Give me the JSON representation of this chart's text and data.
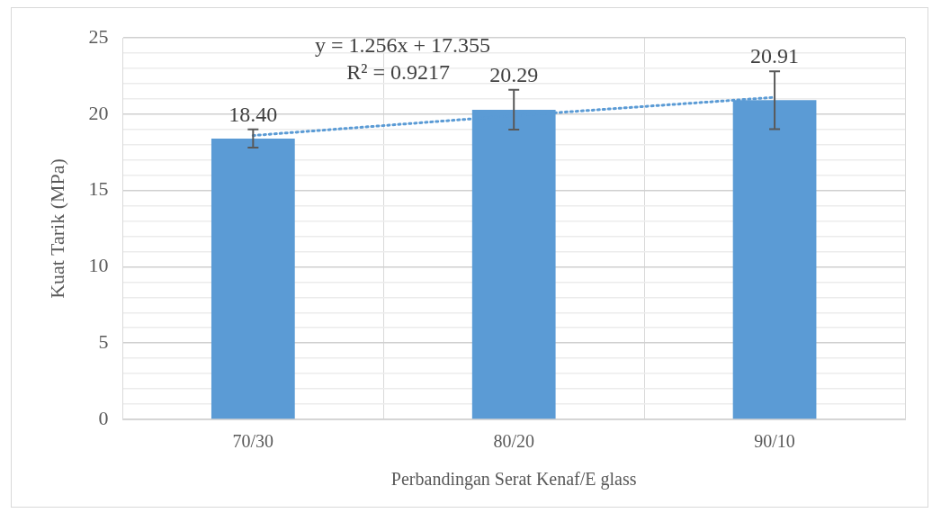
{
  "chart_data": {
    "type": "bar",
    "xlabel": "Perbandingan Serat Kenaf/E glass",
    "ylabel": "Kuat Tarik (MPa)",
    "categories": [
      "70/30",
      "80/20",
      "90/10"
    ],
    "series": [
      {
        "color": "#5b9bd5",
        "values": [
          18.4,
          20.29,
          20.91
        ],
        "errors": [
          0.6,
          1.3,
          1.9
        ],
        "value_labels": [
          "18.40",
          "20.29",
          "20.91"
        ]
      },
      {
        "type": "line",
        "color": "#5b9bd5",
        "line_style": "dotted",
        "marker": "none",
        "x": [
          "70/30",
          "80/20",
          "90/10"
        ],
        "values": [
          18.6,
          19.9,
          21.1
        ]
      }
    ],
    "ylim": [
      0,
      25
    ],
    "yticks": [
      0,
      {
        "value": 1,
        "label": null
      },
      {
        "value": 2,
        "label": null
      },
      {
        "value": 3,
        "label": null
      },
      {
        "value": 4,
        "label": null
      },
      5,
      {
        "value": 6,
        "label": null
      },
      {
        "value": 7,
        "label": null
      },
      {
        "value": 8,
        "label": null
      },
      {
        "value": 9,
        "label": null
      },
      10,
      {
        "value": 11,
        "label": null
      },
      {
        "value": 12,
        "label": null
      },
      {
        "value": 13,
        "label": null
      },
      {
        "value": 14,
        "label": null
      },
      15,
      {
        "value": 16,
        "label": null
      },
      {
        "value": 17,
        "label": null
      },
      {
        "value": 18,
        "label": null
      },
      {
        "value": 19,
        "label": null
      },
      20,
      {
        "value": 21,
        "label": null
      },
      {
        "value": 22,
        "label": null
      },
      {
        "value": 23,
        "label": null
      },
      {
        "value": 24,
        "label": null
      },
      25
    ],
    "grid": true,
    "annotations": [
      "y = 1.256x + 17.355",
      "R² = 0.9217"
    ]
  }
}
